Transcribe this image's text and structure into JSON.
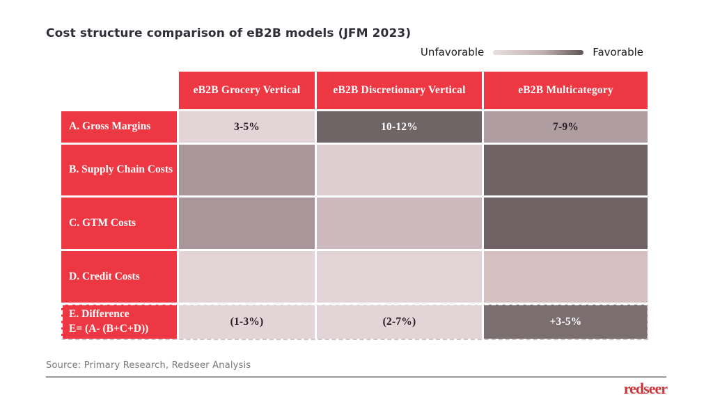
{
  "title": "Cost structure comparison of eB2B models (JFM 2023)",
  "legend": {
    "left_label": "Unfavorable",
    "right_label": "Favorable",
    "gradient": {
      "from": "#E9DEDF",
      "mid": "#C2B1B4",
      "to": "#5E5356"
    }
  },
  "colors": {
    "accent_red": "#ED3742",
    "logo_red": "#D2343B",
    "cell_light": "#E2D4D7",
    "cell_medium": "#A9969B",
    "cell_dark": "#6E6264",
    "dark_text": "#241C21"
  },
  "table": {
    "columns": [
      "eB2B Grocery Vertical",
      "eB2B Discretionary Vertical",
      "eB2B Multicategory"
    ],
    "rows": [
      {
        "label": "A. Gross Margins",
        "cells": [
          {
            "value": "3-5%",
            "bg": "#E2D4D7",
            "fg": "#241C21"
          },
          {
            "value": "10-12%",
            "bg": "#6F6466",
            "fg": "#FFFFFF"
          },
          {
            "value": "7-9%",
            "bg": "#B09DA1",
            "fg": "#241C21"
          }
        ]
      },
      {
        "label": "B. Supply Chain Costs",
        "cells": [
          {
            "value": "",
            "bg": "#A9969B"
          },
          {
            "value": "",
            "bg": "#DECDD1"
          },
          {
            "value": "",
            "bg": "#6E6264"
          }
        ]
      },
      {
        "label": "C. GTM Costs",
        "cells": [
          {
            "value": "",
            "bg": "#A9969B"
          },
          {
            "value": "",
            "bg": "#CBB9BE"
          },
          {
            "value": "",
            "bg": "#6E6264"
          }
        ]
      },
      {
        "label": "D. Credit Costs",
        "cells": [
          {
            "value": "",
            "bg": "#E2D4D7"
          },
          {
            "value": "",
            "bg": "#E2D4D7"
          },
          {
            "value": "",
            "bg": "#D6BFC1"
          }
        ]
      },
      {
        "label": "E. Difference",
        "label_line2": "E= (A- (B+C+D))",
        "cells": [
          {
            "value": "(1-3%)",
            "bg": "#E2D4D7",
            "fg": "#241C21"
          },
          {
            "value": "(2-7%)",
            "bg": "#E2D4D7",
            "fg": "#241C21"
          },
          {
            "value": "+3-5%",
            "bg": "#7A6E70",
            "fg": "#FFFFFF"
          }
        ]
      }
    ]
  },
  "chart_data": {
    "type": "heatmap",
    "title": "Cost structure comparison of eB2B models (JFM 2023)",
    "columns": [
      "eB2B Grocery Vertical",
      "eB2B Discretionary Vertical",
      "eB2B Multicategory"
    ],
    "rows": [
      "A. Gross Margins",
      "B. Supply Chain Costs",
      "C. GTM Costs",
      "D. Credit Costs",
      "E. Difference E= (A- (B+C+D))"
    ],
    "cell_text": [
      [
        "3-5%",
        "10-12%",
        "7-9%"
      ],
      [
        "",
        "",
        ""
      ],
      [
        "",
        "",
        ""
      ],
      [
        "",
        "",
        ""
      ],
      [
        "(1-3%)",
        "(2-7%)",
        "+3-5%"
      ]
    ],
    "favorability_1_to_5": [
      [
        1,
        5,
        3
      ],
      [
        3,
        1,
        5
      ],
      [
        3,
        2,
        5
      ],
      [
        1,
        1,
        2
      ],
      [
        1,
        1,
        5
      ]
    ],
    "legend": {
      "low_label": "Unfavorable",
      "high_label": "Favorable",
      "scale_note": "light = unfavorable, dark = favorable"
    },
    "highlighted_row": "E. Difference (dashed outline)"
  },
  "source": "Source: Primary Research, Redseer Analysis",
  "logo": "redseer"
}
